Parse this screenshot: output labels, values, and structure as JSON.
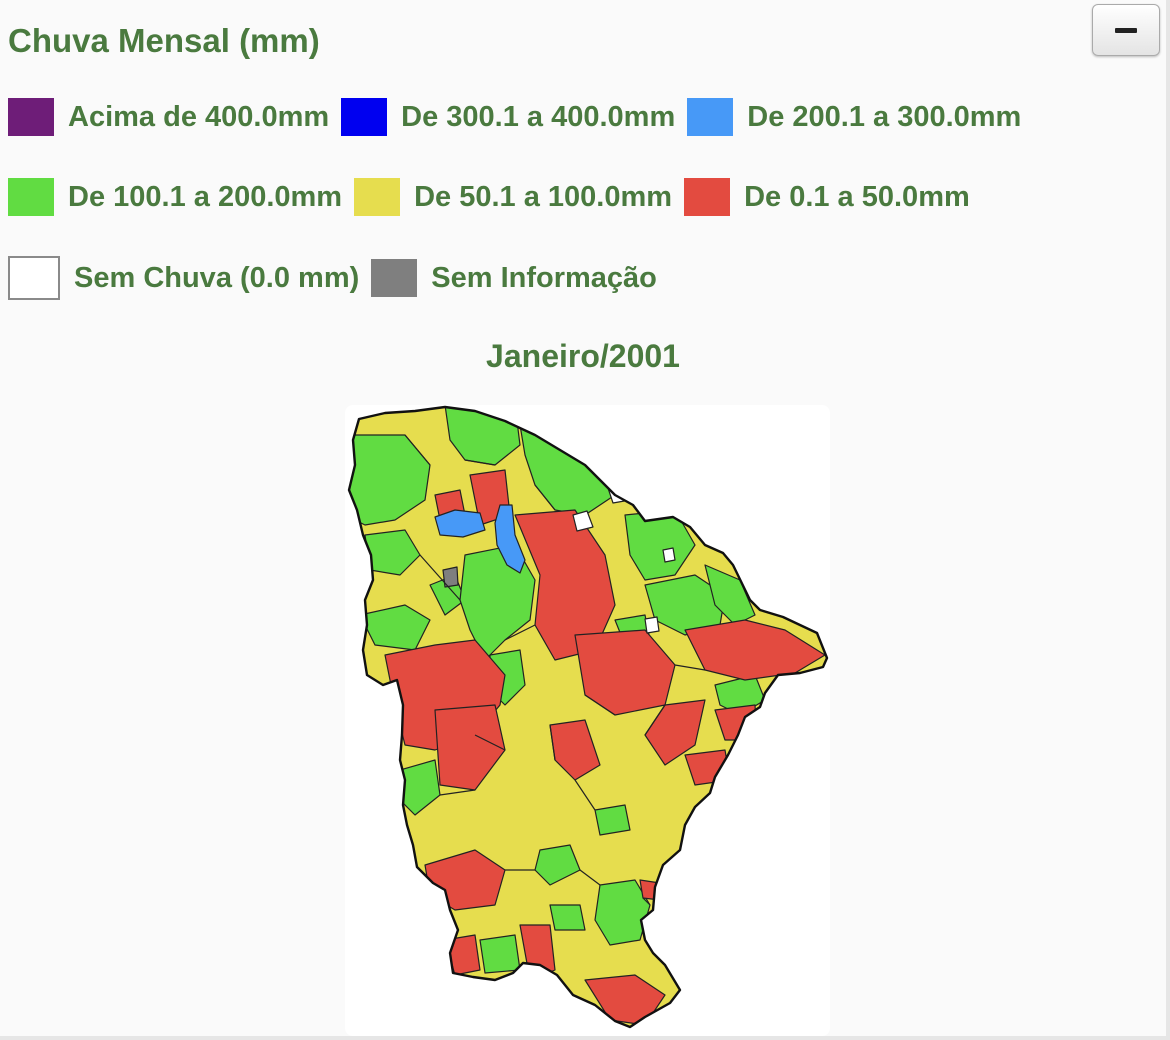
{
  "title": "Chuva Mensal (mm)",
  "collapse_icon": "minus-icon",
  "legend": [
    {
      "label": "Acima de 400.0mm",
      "color": "#6e1d78"
    },
    {
      "label": "De 300.1 a 400.0mm",
      "color": "#0000f0"
    },
    {
      "label": "De 200.1 a 300.0mm",
      "color": "#4799f7"
    },
    {
      "label": "De 100.1 a 200.0mm",
      "color": "#61dc42"
    },
    {
      "label": "De 50.1 a 100.0mm",
      "color": "#e6dd4e"
    },
    {
      "label": "De 0.1 a 50.0mm",
      "color": "#e34b40"
    },
    {
      "label": "Sem Chuva (0.0 mm)",
      "color": "#ffffff"
    },
    {
      "label": "Sem Informação",
      "color": "#7f7f7f"
    }
  ],
  "map": {
    "title": "Janeiro/2001",
    "region_colors": {
      "green": "#61dc42",
      "yellow": "#e6dd4e",
      "red": "#e34b40",
      "blue": "#4799f7",
      "gray": "#7f7f7f",
      "white": "#ffffff"
    }
  }
}
